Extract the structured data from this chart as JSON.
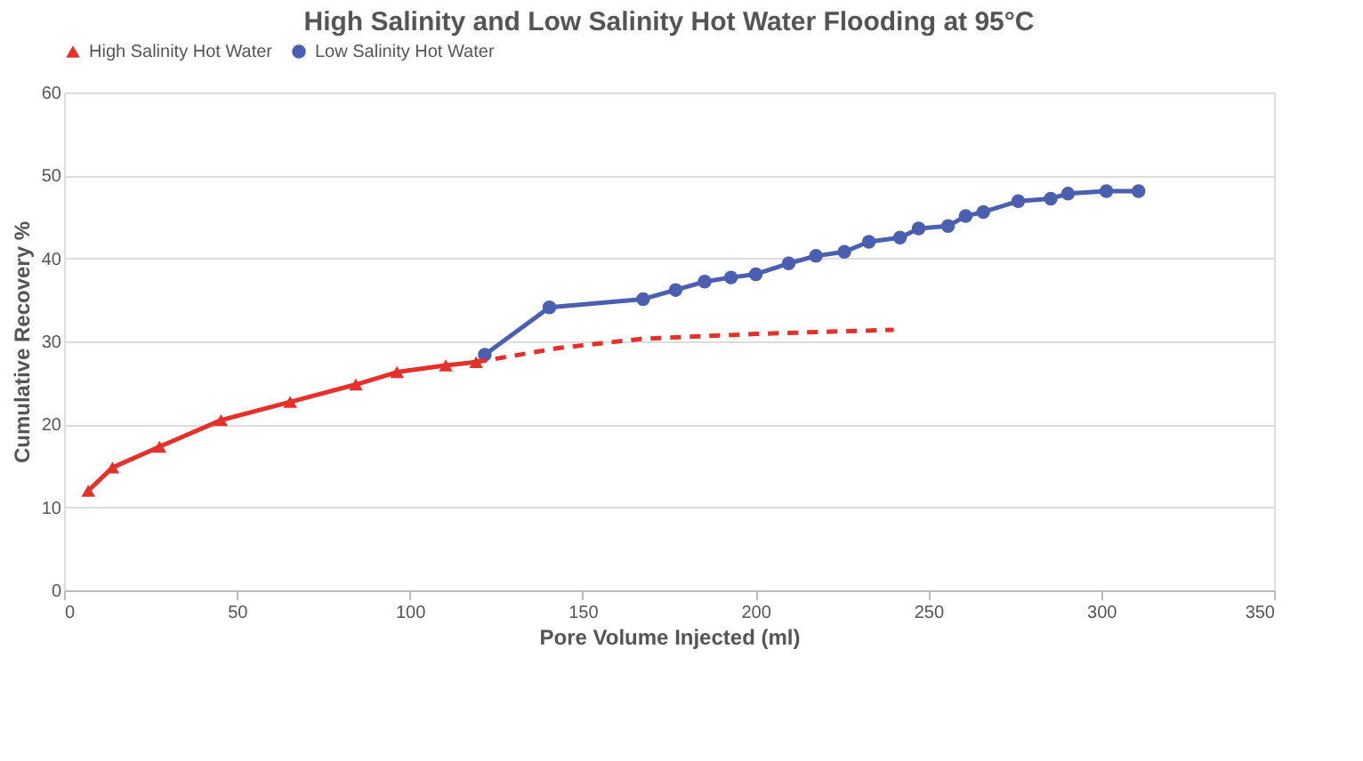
{
  "chart_data": {
    "type": "line",
    "title": "High Salinity and Low Salinity Hot Water Flooding at 95°C",
    "xlabel": "Pore Volume Injected (ml)",
    "ylabel": "Cumulative Recovery %",
    "xlim": [
      0,
      350
    ],
    "xticks": [
      0,
      50,
      100,
      150,
      200,
      250,
      300,
      350
    ],
    "ylim": [
      0,
      60
    ],
    "yticks": [
      0,
      10,
      20,
      30,
      40,
      50,
      60
    ],
    "grid": "y",
    "legend": "top",
    "series": [
      {
        "name": "High Salinity Hot Water",
        "color": "#e8302a",
        "marker": "triangle",
        "line_style": "solid",
        "x": [
          7,
          14,
          27.6,
          45.4,
          65.4,
          84.4,
          96.3,
          110.4,
          119.2
        ],
        "values": [
          12.0,
          14.8,
          17.3,
          20.5,
          22.7,
          24.8,
          26.3,
          27.1,
          27.5
        ]
      },
      {
        "name": "Low Salinity Hot Water",
        "color": "#4a5fb0",
        "marker": "circle",
        "line_style": "solid",
        "x": [
          121.7,
          140.4,
          167.5,
          176.9,
          185.3,
          192.9,
          200.1,
          209.6,
          217.5,
          225.7,
          232.8,
          241.8,
          247.2,
          255.7,
          260.8,
          265.9,
          276.0,
          285.4,
          290.4,
          301.5,
          310.8
        ],
        "values": [
          28.4,
          34.1,
          35.1,
          36.2,
          37.2,
          37.7,
          38.1,
          39.4,
          40.3,
          40.8,
          42.0,
          42.5,
          43.6,
          43.9,
          45.1,
          45.6,
          46.9,
          47.2,
          47.8,
          48.1,
          48.1
        ]
      },
      {
        "color": "#e8302a",
        "marker": "none",
        "line_style": "dashed",
        "x": [
          119.2,
          143,
          167,
          200,
          240
        ],
        "values": [
          27.5,
          29.2,
          30.3,
          30.9,
          31.4
        ]
      }
    ]
  }
}
